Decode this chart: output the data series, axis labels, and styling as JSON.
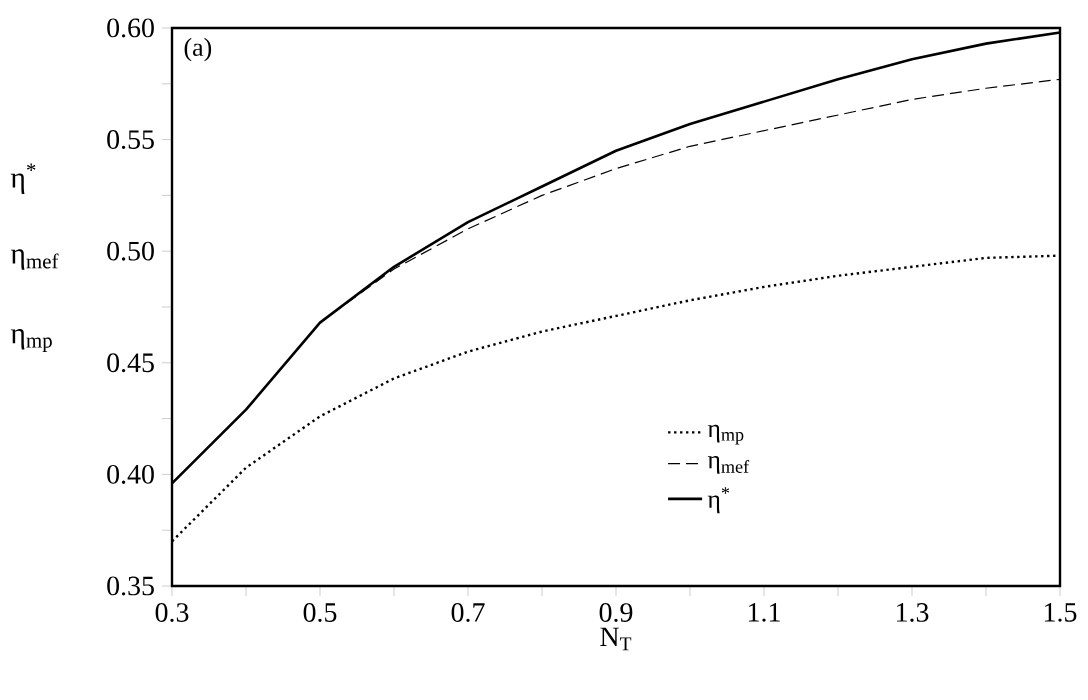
{
  "chart_data": {
    "type": "line",
    "xlabel": "N$_{T}$",
    "annotations": [
      "(a)",
      "η$^{*}$",
      "η$_{mef}$",
      "η$_{mp}$"
    ],
    "x": [
      0.3,
      0.4,
      0.5,
      0.6,
      0.7,
      0.8,
      0.9,
      1.0,
      1.1,
      1.2,
      1.3,
      1.4,
      1.5
    ],
    "series": [
      {
        "name": "η$_{mp}$",
        "color": "#000000",
        "line_style": "dotted",
        "values": [
          0.37,
          0.403,
          0.426,
          0.443,
          0.455,
          0.464,
          0.471,
          0.478,
          0.484,
          0.489,
          0.493,
          0.497,
          0.498
        ]
      },
      {
        "name": "η$_{mef}$",
        "color": "#000000",
        "line_style": "dashed",
        "values": [
          0.396,
          0.429,
          0.468,
          0.492,
          0.51,
          0.525,
          0.537,
          0.547,
          0.554,
          0.561,
          0.568,
          0.573,
          0.577
        ]
      },
      {
        "name": "η$^{*}$",
        "color": "#000000",
        "line_style": "solid",
        "values": [
          0.396,
          0.429,
          0.468,
          0.493,
          0.513,
          0.529,
          0.545,
          0.557,
          0.567,
          0.577,
          0.586,
          0.593,
          0.598
        ]
      }
    ],
    "xlim": [
      0.3,
      1.5
    ],
    "ylim": [
      0.35,
      0.6
    ],
    "xticks": [
      0.3,
      {
        "value": 0.4,
        "label": null
      },
      0.5,
      {
        "value": 0.6,
        "label": null
      },
      0.7,
      {
        "value": 0.8,
        "label": null
      },
      0.9,
      {
        "value": 1.0,
        "label": null
      },
      1.1,
      {
        "value": 1.2,
        "label": null
      },
      1.3,
      {
        "value": 1.4,
        "label": null
      },
      1.5
    ],
    "yticks": [
      0.35,
      {
        "value": 0.375,
        "label": null
      },
      {
        "value": 0.4,
        "label": "0.40"
      },
      {
        "value": 0.425,
        "label": null
      },
      0.45,
      {
        "value": 0.475,
        "label": null
      },
      {
        "value": 0.5,
        "label": "0.50"
      },
      {
        "value": 0.525,
        "label": null
      },
      0.55,
      {
        "value": 0.575,
        "label": null
      },
      {
        "value": 0.6,
        "label": "0.60"
      }
    ],
    "legend": "bottom right",
    "marker": "none",
    "grid": false
  }
}
